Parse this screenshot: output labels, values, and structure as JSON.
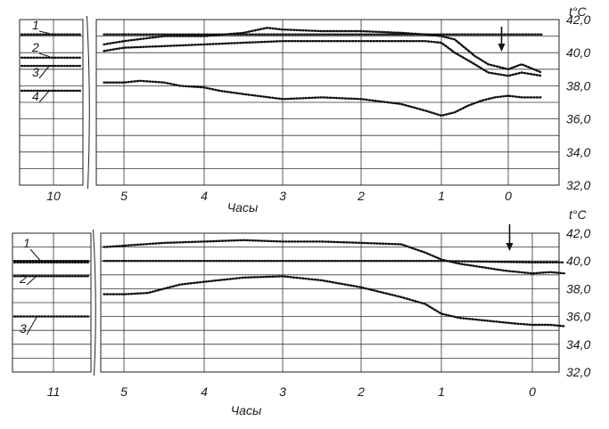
{
  "chart_data": [
    {
      "type": "line",
      "xlabel": "Часы",
      "ylabel": "t°C",
      "ylim": [
        32.0,
        42.0
      ],
      "y_ticks": [
        "42,0",
        "40,0",
        "38,0",
        "36,0",
        "34,0",
        "32,0"
      ],
      "x_ticks_left": [
        "10"
      ],
      "x_ticks_right": [
        "5",
        "4",
        "3",
        "2",
        "1",
        "0"
      ],
      "arrow_at_hours": 0.1,
      "series": [
        {
          "name": "1",
          "left_value": 41.1,
          "x": [
            5.25,
            4,
            3,
            2,
            1.2,
            0,
            -0.5
          ],
          "values": [
            41.1,
            41.1,
            41.1,
            41.1,
            41.1,
            41.1,
            41.1
          ]
        },
        {
          "name": "2",
          "left_value": 39.7,
          "x": [
            5.25,
            5.0,
            4.5,
            4.0,
            3.5,
            3.2,
            3.0,
            2.5,
            2.0,
            1.5,
            1.2,
            1.0,
            0.8,
            0.5,
            0.3,
            0.0,
            -0.2,
            -0.5
          ],
          "values": [
            40.5,
            40.7,
            41.0,
            41.0,
            41.2,
            41.5,
            41.4,
            41.3,
            41.3,
            41.2,
            41.1,
            41.0,
            40.8,
            39.8,
            39.3,
            39.0,
            39.3,
            38.8
          ]
        },
        {
          "name": "3",
          "left_value": 39.2,
          "x": [
            5.25,
            5.0,
            4.5,
            4.0,
            3.5,
            3.0,
            2.5,
            2.0,
            1.5,
            1.2,
            1.0,
            0.8,
            0.5,
            0.3,
            0.0,
            -0.2,
            -0.5
          ],
          "values": [
            40.1,
            40.3,
            40.4,
            40.5,
            40.6,
            40.7,
            40.7,
            40.7,
            40.7,
            40.7,
            40.6,
            40.0,
            39.3,
            38.8,
            38.6,
            38.8,
            38.6
          ]
        },
        {
          "name": "4",
          "left_value": 37.7,
          "x": [
            5.25,
            5.0,
            4.8,
            4.5,
            4.3,
            4.0,
            3.8,
            3.5,
            3.0,
            2.5,
            2.0,
            1.5,
            1.2,
            1.0,
            0.8,
            0.6,
            0.4,
            0.2,
            0.0,
            -0.2,
            -0.5
          ],
          "values": [
            38.2,
            38.2,
            38.3,
            38.2,
            38.0,
            37.9,
            37.7,
            37.5,
            37.2,
            37.3,
            37.2,
            36.9,
            36.5,
            36.2,
            36.4,
            36.8,
            37.1,
            37.3,
            37.4,
            37.3,
            37.3
          ]
        }
      ]
    },
    {
      "type": "line",
      "xlabel": "Часы",
      "ylabel": "t°C",
      "ylim": [
        32.0,
        42.0
      ],
      "y_ticks": [
        "42,0",
        "40,0",
        "38,0",
        "36,0",
        "34,0",
        "32,0"
      ],
      "x_ticks_left": [
        "11"
      ],
      "x_ticks_right": [
        "5",
        "4",
        "3",
        "2",
        "1",
        "0"
      ],
      "arrow_at_hours": 0.25,
      "series": [
        {
          "name": "1",
          "left_value": 39.9,
          "x": [
            5.25,
            5.0,
            4.5,
            4.0,
            3.5,
            3.0,
            2.5,
            2.0,
            1.5,
            1.2,
            1.0,
            0.8,
            0.5,
            0.3,
            0.0,
            -0.2,
            -0.35
          ],
          "values": [
            41.0,
            41.1,
            41.3,
            41.4,
            41.5,
            41.4,
            41.4,
            41.3,
            41.2,
            40.6,
            40.1,
            39.8,
            39.5,
            39.3,
            39.1,
            39.2,
            39.1
          ]
        },
        {
          "name": "",
          "left_value": 40.0,
          "x": [
            5.25,
            4.0,
            3.0,
            2.0,
            1.0,
            0.0,
            -0.35
          ],
          "values": [
            40.0,
            40.0,
            40.0,
            40.0,
            40.0,
            39.9,
            39.9
          ]
        },
        {
          "name": "2",
          "left_value": 38.9,
          "x": [
            5.25,
            5.0,
            4.7,
            4.5,
            4.3,
            4.0,
            3.5,
            3.0,
            2.5,
            2.0,
            1.5,
            1.2,
            1.0,
            0.8,
            0.5,
            0.2,
            0.0,
            -0.2,
            -0.35
          ],
          "values": [
            37.6,
            37.6,
            37.7,
            38.0,
            38.3,
            38.5,
            38.8,
            38.9,
            38.6,
            38.1,
            37.4,
            36.9,
            36.2,
            35.9,
            35.7,
            35.5,
            35.4,
            35.4,
            35.3
          ]
        },
        {
          "name": "3",
          "left_value": 36.0,
          "x": [],
          "values": []
        }
      ]
    }
  ]
}
